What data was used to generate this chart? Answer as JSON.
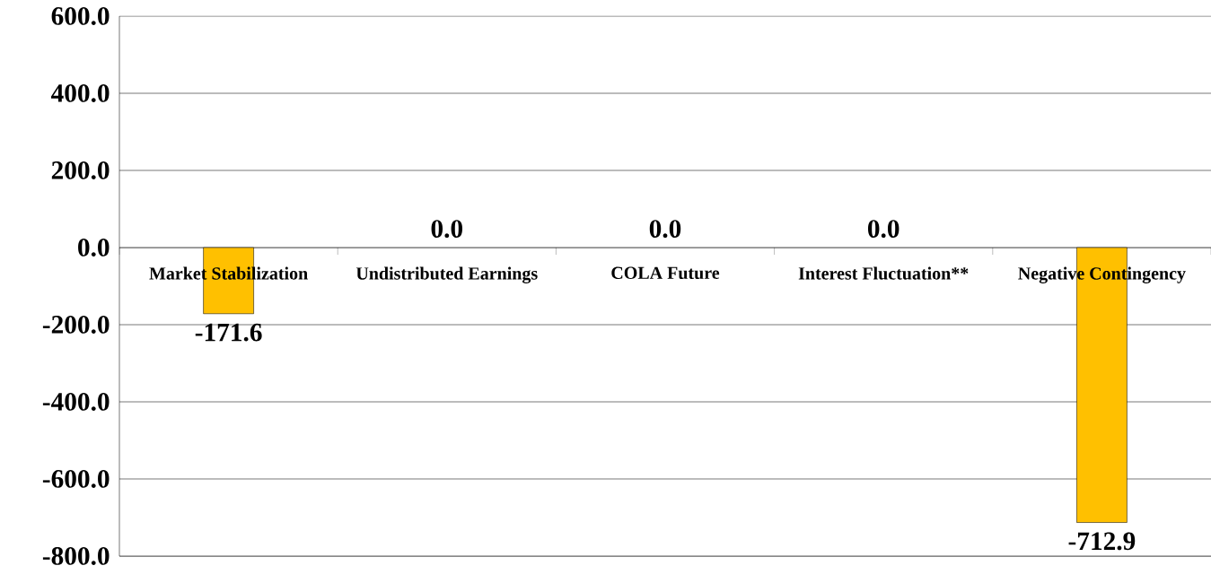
{
  "chart_data": {
    "type": "bar",
    "categories": [
      "Market Stabilization",
      "Undistributed Earnings",
      "COLA Future",
      "Interest Fluctuation**",
      "Negative Contingency"
    ],
    "values": [
      -171.6,
      0.0,
      0.0,
      0.0,
      -712.9
    ],
    "color": "#ffc000",
    "ylim": [
      -800,
      600
    ],
    "yticks": [
      {
        "value": -800,
        "label": "-800.0"
      },
      {
        "value": -600,
        "label": "-600.0"
      },
      {
        "value": -400,
        "label": "-400.0"
      },
      {
        "value": -200,
        "label": "-200.0"
      },
      {
        "value": 0,
        "label": "0.0"
      },
      {
        "value": 200,
        "label": "200.0"
      },
      {
        "value": 400,
        "label": "400.0"
      },
      {
        "value": 600,
        "label": "600.0"
      }
    ],
    "grid": "y",
    "value_labels": [
      "-171.6",
      "0.0",
      "0.0",
      "0.0",
      "-712.9"
    ]
  }
}
